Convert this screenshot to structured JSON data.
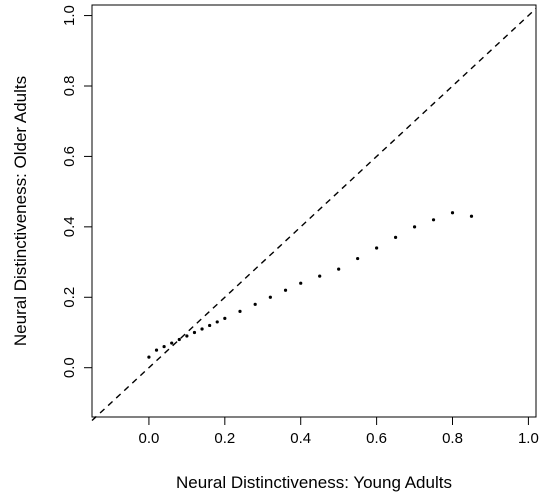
{
  "chart_data": {
    "type": "scatter",
    "title": "",
    "xlabel": "Neural Distinctiveness: Young Adults",
    "ylabel": "Neural Distinctiveness: Older Adults",
    "xlim": [
      -0.15,
      1.02
    ],
    "ylim": [
      -0.14,
      1.03
    ],
    "x_ticks": [
      "0.0",
      "0.2",
      "0.4",
      "0.6",
      "0.8",
      "1.0"
    ],
    "y_ticks": [
      "0.0",
      "0.2",
      "0.4",
      "0.6",
      "0.8",
      "1.0"
    ],
    "grid": false,
    "legend": "none",
    "reference_line": {
      "style": "dashed",
      "from": [
        -0.15,
        -0.15
      ],
      "to": [
        1.02,
        1.02
      ]
    },
    "point_color": "#000000",
    "series": [
      {
        "values": [
          [
            0.0,
            0.03
          ],
          [
            0.02,
            0.05
          ],
          [
            0.04,
            0.06
          ],
          [
            0.06,
            0.07
          ],
          [
            0.08,
            0.08
          ],
          [
            0.1,
            0.09
          ],
          [
            0.12,
            0.1
          ],
          [
            0.14,
            0.11
          ],
          [
            0.16,
            0.12
          ],
          [
            0.18,
            0.13
          ],
          [
            0.2,
            0.14
          ],
          [
            0.24,
            0.16
          ],
          [
            0.28,
            0.18
          ],
          [
            0.32,
            0.2
          ],
          [
            0.36,
            0.22
          ],
          [
            0.4,
            0.24
          ],
          [
            0.45,
            0.26
          ],
          [
            0.5,
            0.28
          ],
          [
            0.55,
            0.31
          ],
          [
            0.6,
            0.34
          ],
          [
            0.65,
            0.37
          ],
          [
            0.7,
            0.4
          ],
          [
            0.75,
            0.42
          ],
          [
            0.8,
            0.44
          ],
          [
            0.85,
            0.43
          ]
        ]
      }
    ]
  }
}
